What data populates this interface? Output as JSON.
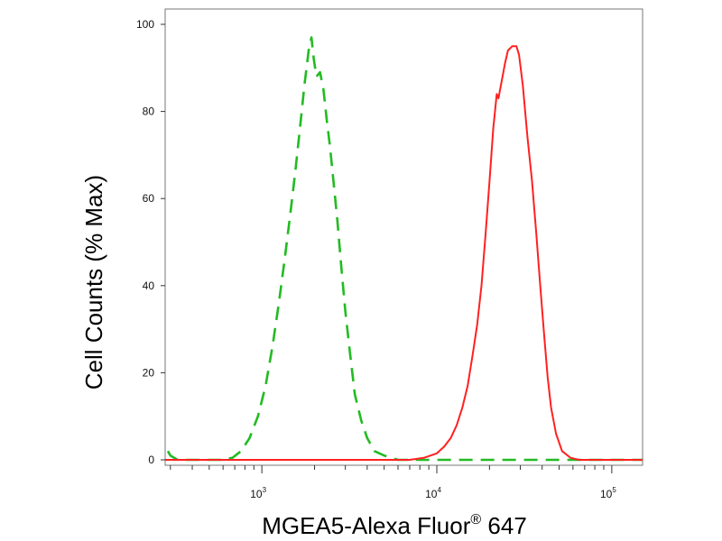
{
  "chart_data": {
    "type": "line",
    "title": "",
    "xlabel": "MGEA5-Alexa Fluor",
    "xlabel_sup": "®",
    "xlabel_suffix": " 647",
    "ylabel": "Cell Counts (% Max)",
    "x_scale": "log",
    "xlim": [
      280,
      150000
    ],
    "ylim": [
      0,
      102
    ],
    "grid": false,
    "x_ticks": [
      {
        "base": "10",
        "exp": "3",
        "value": 1000
      },
      {
        "base": "10",
        "exp": "4",
        "value": 10000
      },
      {
        "base": "10",
        "exp": "5",
        "value": 100000
      }
    ],
    "y_ticks": [
      "0",
      "20",
      "40",
      "60",
      "80",
      "100"
    ],
    "series": [
      {
        "color": "#22bb22",
        "style": "dashed",
        "points": [
          [
            290,
            2
          ],
          [
            300,
            1
          ],
          [
            330,
            0
          ],
          [
            500,
            0
          ],
          [
            600,
            0
          ],
          [
            680,
            0.5
          ],
          [
            760,
            2
          ],
          [
            850,
            5
          ],
          [
            950,
            10
          ],
          [
            1050,
            17
          ],
          [
            1150,
            26
          ],
          [
            1250,
            36
          ],
          [
            1350,
            46
          ],
          [
            1450,
            56
          ],
          [
            1550,
            66
          ],
          [
            1650,
            76
          ],
          [
            1750,
            86
          ],
          [
            1850,
            94
          ],
          [
            1920,
            97
          ],
          [
            1980,
            92
          ],
          [
            2050,
            88
          ],
          [
            2150,
            89
          ],
          [
            2250,
            85
          ],
          [
            2350,
            78
          ],
          [
            2450,
            72
          ],
          [
            2550,
            65
          ],
          [
            2700,
            55
          ],
          [
            2850,
            44
          ],
          [
            3000,
            34
          ],
          [
            3200,
            24
          ],
          [
            3400,
            15
          ],
          [
            3700,
            9
          ],
          [
            4000,
            5
          ],
          [
            4400,
            2
          ],
          [
            5000,
            1
          ],
          [
            6000,
            0
          ],
          [
            10000,
            0
          ],
          [
            30000,
            0
          ],
          [
            60000,
            0
          ],
          [
            150000,
            0
          ]
        ]
      },
      {
        "color": "#ff2020",
        "style": "solid",
        "points": [
          [
            280,
            0
          ],
          [
            5000,
            0
          ],
          [
            7000,
            0
          ],
          [
            8500,
            0.5
          ],
          [
            10000,
            1.5
          ],
          [
            11000,
            3
          ],
          [
            12000,
            5
          ],
          [
            13000,
            8
          ],
          [
            14000,
            12
          ],
          [
            15000,
            17
          ],
          [
            16000,
            24
          ],
          [
            17000,
            31
          ],
          [
            18000,
            40
          ],
          [
            19000,
            52
          ],
          [
            20000,
            64
          ],
          [
            21000,
            76
          ],
          [
            22000,
            84
          ],
          [
            22500,
            83
          ],
          [
            23500,
            87
          ],
          [
            24500,
            91
          ],
          [
            25500,
            94
          ],
          [
            27000,
            95
          ],
          [
            28500,
            95
          ],
          [
            29500,
            93
          ],
          [
            31000,
            86
          ],
          [
            33000,
            74
          ],
          [
            35000,
            64
          ],
          [
            37000,
            52
          ],
          [
            39000,
            40
          ],
          [
            41000,
            29
          ],
          [
            43000,
            19
          ],
          [
            45000,
            12
          ],
          [
            48000,
            6
          ],
          [
            52000,
            2
          ],
          [
            58000,
            0.5
          ],
          [
            65000,
            0
          ],
          [
            80000,
            0
          ],
          [
            150000,
            0
          ]
        ]
      }
    ]
  }
}
